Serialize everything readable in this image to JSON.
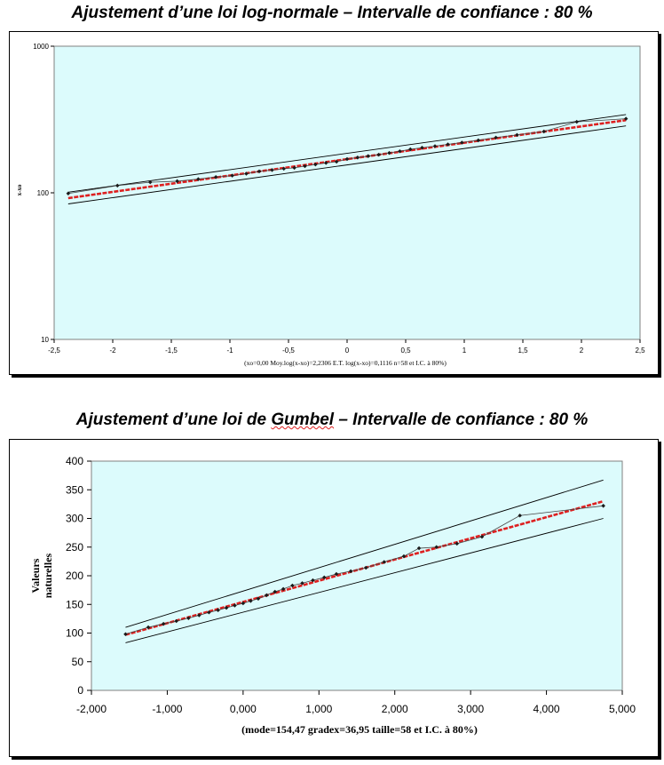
{
  "chart_data": [
    {
      "type": "line",
      "title": "Ajustement d’une loi log-normale – Intervalle de confiance : 80 %",
      "ylabel": "x-xo",
      "xlabel": "(xo=0,00 Moy.log(x-xo)=2,2306 E.T. log(x-xo)=0,1116 n=58 et I.C. à 80%)",
      "yscale": "log",
      "xlim": [
        -2.5,
        2.5
      ],
      "ylim": [
        10,
        1000
      ],
      "x_ticks": [
        "-2,5",
        "-2",
        "-1,5",
        "-1",
        "-0,5",
        "0",
        "0,5",
        "1",
        "1,5",
        "2",
        "2,5"
      ],
      "y_ticks": [
        "10",
        "100",
        "1000"
      ],
      "grid": false,
      "background": "#dcfbfc",
      "series": [
        {
          "role": "fit",
          "color": "#dd2020",
          "x": [
            -2.38,
            2.38
          ],
          "y": [
            92,
            313
          ]
        },
        {
          "role": "upper",
          "color": "#000000",
          "x": [
            -2.38,
            2.38
          ],
          "y": [
            101,
            342
          ]
        },
        {
          "role": "lower",
          "color": "#000000",
          "x": [
            -2.38,
            2.38
          ],
          "y": [
            84,
            286
          ]
        },
        {
          "role": "observed",
          "color": "#1a1a1a",
          "x": [
            -2.38,
            -1.96,
            -1.68,
            -1.45,
            -1.27,
            -1.12,
            -0.98,
            -0.86,
            -0.75,
            -0.64,
            -0.54,
            -0.45,
            -0.36,
            -0.27,
            -0.18,
            -0.09,
            0.0,
            0.09,
            0.18,
            0.27,
            0.36,
            0.45,
            0.54,
            0.64,
            0.75,
            0.86,
            0.98,
            1.12,
            1.27,
            1.45,
            1.68,
            1.96,
            2.38
          ],
          "y": [
            99,
            112,
            118,
            120,
            124,
            128,
            131,
            135,
            140,
            143,
            146,
            148,
            152,
            156,
            160,
            163,
            170,
            174,
            178,
            182,
            187,
            192,
            198,
            203,
            208,
            214,
            220,
            228,
            238,
            248,
            262,
            305,
            320
          ]
        }
      ]
    },
    {
      "type": "line",
      "title": "Ajustement d’une loi de Gumbel  – Intervalle de confiance : 80 %",
      "ylabel": [
        "Valeurs",
        "naturelles"
      ],
      "xlabel": "(mode=154,47 gradex=36,95 taille=58 et I.C. à 80%)",
      "xlim": [
        -2.0,
        5.0
      ],
      "ylim": [
        0,
        400
      ],
      "x_ticks": [
        "-2,000",
        "-1,000",
        "0,000",
        "1,000",
        "2,000",
        "3,000",
        "4,000",
        "5,000"
      ],
      "y_ticks": [
        "0",
        "50",
        "100",
        "150",
        "200",
        "250",
        "300",
        "350",
        "400"
      ],
      "grid": false,
      "background": "#dcfbfc",
      "series": [
        {
          "role": "fit",
          "color": "#dd2020",
          "x": [
            -1.55,
            4.75
          ],
          "y": [
            97,
            330
          ]
        },
        {
          "role": "upper",
          "color": "#000000",
          "x": [
            -1.55,
            4.75
          ],
          "y": [
            110,
            367
          ]
        },
        {
          "role": "lower",
          "color": "#000000",
          "x": [
            -1.55,
            4.75
          ],
          "y": [
            83,
            300
          ]
        },
        {
          "role": "observed",
          "color": "#1a1a1a",
          "x": [
            -1.55,
            -1.25,
            -1.05,
            -0.88,
            -0.72,
            -0.58,
            -0.45,
            -0.33,
            -0.22,
            -0.11,
            0.0,
            0.1,
            0.2,
            0.31,
            0.42,
            0.53,
            0.65,
            0.78,
            0.92,
            1.07,
            1.23,
            1.42,
            1.62,
            1.86,
            2.12,
            2.32,
            2.55,
            2.82,
            3.15,
            3.65,
            4.75
          ],
          "y": [
            98,
            110,
            116,
            121,
            126,
            131,
            136,
            140,
            144,
            148,
            152,
            156,
            160,
            166,
            172,
            177,
            183,
            187,
            192,
            197,
            203,
            208,
            214,
            224,
            234,
            248,
            250,
            256,
            268,
            305,
            322
          ]
        }
      ]
    }
  ]
}
